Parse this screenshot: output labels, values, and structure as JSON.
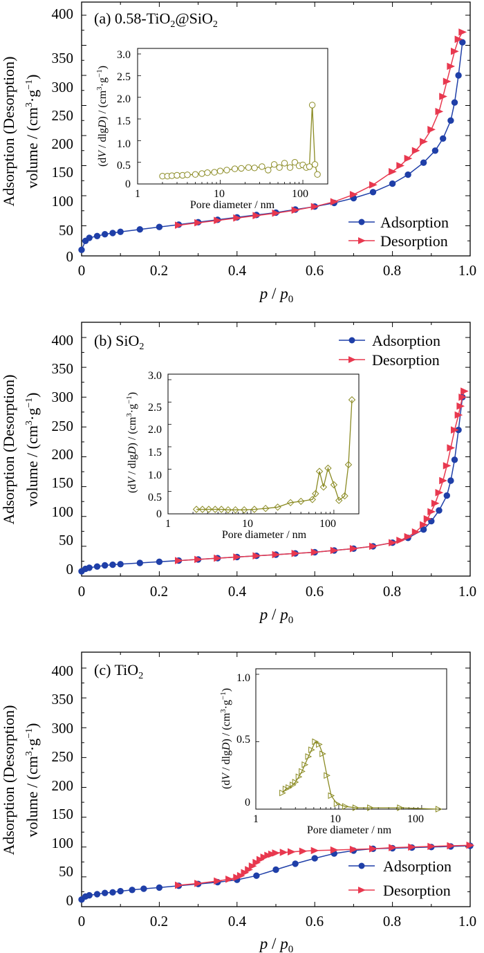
{
  "colors": {
    "adsorption": "#1f3fa8",
    "desorption": "#e8384f",
    "inset": "#8a8a22",
    "axis": "#000000"
  },
  "shared": {
    "xlabel_p": "p",
    "xlabel_sep": " / ",
    "xlabel_p0": "p",
    "xlabel_sub": "0",
    "ylabel_line1": "Adsorption (Desorption)",
    "ylabel_line2_a": "volume / (cm",
    "ylabel_line2_b": "3",
    "ylabel_line2_c": "·g",
    "ylabel_line2_d": "−1",
    "ylabel_line2_e": ")",
    "inset_xlabel": "Pore diameter / nm",
    "inset_ylabel_a": "(d",
    "inset_ylabel_b": "V",
    "inset_ylabel_c": " / dlg",
    "inset_ylabel_d": "D",
    "inset_ylabel_e": ") / (cm",
    "inset_ylabel_f": "3",
    "inset_ylabel_g": "·g",
    "inset_ylabel_h": "−1",
    "inset_ylabel_i": ")",
    "legend_adsorption": "Adsorption",
    "legend_desorption": "Desorption"
  },
  "chart_data": [
    {
      "type": "line",
      "panel_label_a": "(a) 0.58-TiO",
      "panel_label_b": "2",
      "panel_label_c": "@SiO",
      "panel_label_d": "2",
      "xlim": [
        0,
        1.0
      ],
      "ylim": [
        0,
        400
      ],
      "xticks": [
        "0",
        "0.2",
        "0.4",
        "0.6",
        "0.8",
        "1.0"
      ],
      "yticks": [
        "0",
        "50",
        "100",
        "150",
        "200",
        "250",
        "300",
        "350",
        "400"
      ],
      "legend_position": "bottom-right",
      "series": [
        {
          "name": "Adsorption",
          "marker": "circle",
          "x": [
            0.0,
            0.01,
            0.02,
            0.04,
            0.06,
            0.08,
            0.1,
            0.15,
            0.2,
            0.25,
            0.3,
            0.35,
            0.4,
            0.45,
            0.5,
            0.55,
            0.6,
            0.65,
            0.7,
            0.75,
            0.8,
            0.84,
            0.88,
            0.91,
            0.93,
            0.95,
            0.96,
            0.97,
            0.98
          ],
          "y": [
            10,
            25,
            30,
            33,
            36,
            38,
            40,
            44,
            48,
            52,
            56,
            60,
            64,
            68,
            72,
            77,
            82,
            88,
            96,
            106,
            120,
            135,
            155,
            175,
            195,
            225,
            255,
            300,
            355
          ]
        },
        {
          "name": "Desorption",
          "marker": "triangle",
          "x": [
            0.98,
            0.97,
            0.96,
            0.95,
            0.94,
            0.93,
            0.92,
            0.9,
            0.88,
            0.86,
            0.84,
            0.82,
            0.8,
            0.75,
            0.7,
            0.65,
            0.6,
            0.55,
            0.5,
            0.45,
            0.4,
            0.35,
            0.3,
            0.25
          ],
          "y": [
            372,
            360,
            340,
            315,
            290,
            265,
            240,
            210,
            190,
            175,
            162,
            150,
            140,
            118,
            102,
            90,
            82,
            76,
            71,
            67,
            63,
            59,
            55,
            51
          ]
        }
      ],
      "inset": {
        "xscale": "log",
        "xlim": [
          1,
          200
        ],
        "ylim": [
          0,
          3.0
        ],
        "xticks": [
          "1",
          "10",
          "100"
        ],
        "yticks": [
          "0",
          "0.5",
          "1.0",
          "1.5",
          "2.0",
          "2.5",
          "3.0"
        ],
        "marker": "circle",
        "x": [
          2,
          2.3,
          2.6,
          3,
          3.5,
          4,
          5,
          6,
          7,
          8.5,
          10,
          12,
          15,
          18,
          22,
          26,
          32,
          38,
          45,
          52,
          60,
          70,
          80,
          90,
          100,
          110,
          120,
          130,
          140,
          150
        ],
        "y": [
          0.18,
          0.18,
          0.19,
          0.2,
          0.2,
          0.21,
          0.22,
          0.24,
          0.26,
          0.27,
          0.3,
          0.32,
          0.35,
          0.36,
          0.38,
          0.37,
          0.4,
          0.32,
          0.45,
          0.38,
          0.48,
          0.38,
          0.5,
          0.42,
          0.44,
          0.38,
          0.4,
          1.82,
          0.45,
          0.22
        ]
      }
    },
    {
      "type": "line",
      "panel_label_a": "(b) SiO",
      "panel_label_b": "2",
      "panel_label_c": "",
      "panel_label_d": "",
      "xlim": [
        0,
        1.0
      ],
      "ylim": [
        0,
        400
      ],
      "xticks": [
        "0",
        "0.2",
        "0.4",
        "0.6",
        "0.8",
        "1.0"
      ],
      "yticks": [
        "0",
        "50",
        "100",
        "150",
        "200",
        "250",
        "300",
        "350",
        "400"
      ],
      "legend_position": "top-right",
      "series": [
        {
          "name": "Adsorption",
          "marker": "circle",
          "x": [
            0.0,
            0.01,
            0.02,
            0.04,
            0.06,
            0.08,
            0.1,
            0.15,
            0.2,
            0.25,
            0.3,
            0.35,
            0.4,
            0.45,
            0.5,
            0.55,
            0.6,
            0.65,
            0.7,
            0.75,
            0.8,
            0.84,
            0.88,
            0.9,
            0.92,
            0.94,
            0.95,
            0.96,
            0.97,
            0.98
          ],
          "y": [
            8,
            12,
            14,
            16,
            18,
            19,
            20,
            22,
            24,
            26,
            28,
            30,
            32,
            34,
            36,
            38,
            40,
            43,
            46,
            50,
            56,
            64,
            78,
            92,
            110,
            135,
            160,
            195,
            245,
            300
          ]
        },
        {
          "name": "Desorption",
          "marker": "triangle",
          "x": [
            0.985,
            0.98,
            0.975,
            0.97,
            0.96,
            0.95,
            0.94,
            0.93,
            0.92,
            0.91,
            0.9,
            0.89,
            0.88,
            0.86,
            0.84,
            0.82,
            0.8,
            0.75,
            0.7,
            0.65,
            0.6,
            0.55,
            0.5,
            0.45,
            0.4,
            0.35,
            0.3,
            0.25
          ],
          "y": [
            310,
            300,
            285,
            270,
            245,
            215,
            185,
            160,
            140,
            122,
            108,
            96,
            86,
            74,
            66,
            60,
            56,
            50,
            46,
            43,
            40,
            38,
            36,
            34,
            32,
            30,
            28,
            26
          ]
        }
      ],
      "inset": {
        "xscale": "log",
        "xlim": [
          1,
          200
        ],
        "ylim": [
          0,
          3.0
        ],
        "xticks": [
          "1",
          "10",
          "100"
        ],
        "yticks": [
          "0",
          "0.5",
          "1.0",
          "1.5",
          "2.0",
          "2.5",
          "3.0"
        ],
        "marker": "diamond",
        "x": [
          2.2,
          2.6,
          3.1,
          3.7,
          4.4,
          5.3,
          6.5,
          8.3,
          11,
          15,
          21,
          30,
          40,
          55,
          60,
          67,
          75,
          85,
          100,
          115,
          135,
          150,
          165
        ],
        "y": [
          0.1,
          0.1,
          0.1,
          0.1,
          0.1,
          0.09,
          0.09,
          0.09,
          0.1,
          0.12,
          0.15,
          0.25,
          0.28,
          0.32,
          0.45,
          0.95,
          0.6,
          1.02,
          0.65,
          0.3,
          0.4,
          1.1,
          2.55
        ]
      }
    },
    {
      "type": "line",
      "panel_label_a": "(c) TiO",
      "panel_label_b": "2",
      "panel_label_c": "",
      "panel_label_d": "",
      "xlim": [
        0,
        1.0
      ],
      "ylim": [
        0,
        400
      ],
      "xticks": [
        "0",
        "0.2",
        "0.4",
        "0.6",
        "0.8",
        "1.0"
      ],
      "yticks": [
        "0",
        "50",
        "100",
        "150",
        "200",
        "250",
        "300",
        "350",
        "400"
      ],
      "legend_position": "bottom-right",
      "series": [
        {
          "name": "Adsorption",
          "marker": "circle",
          "x": [
            0.0,
            0.01,
            0.02,
            0.04,
            0.06,
            0.08,
            0.1,
            0.13,
            0.16,
            0.2,
            0.25,
            0.3,
            0.35,
            0.4,
            0.45,
            0.5,
            0.55,
            0.6,
            0.65,
            0.7,
            0.75,
            0.8,
            0.85,
            0.9,
            0.95,
            1.0
          ],
          "y": [
            12,
            17,
            19,
            21,
            23,
            24,
            26,
            28,
            30,
            32,
            35,
            38,
            41,
            45,
            52,
            62,
            72,
            81,
            89,
            94,
            97,
            98,
            99,
            100,
            101,
            102
          ]
        },
        {
          "name": "Desorption",
          "marker": "triangle",
          "x": [
            1.0,
            0.95,
            0.9,
            0.85,
            0.8,
            0.75,
            0.7,
            0.65,
            0.6,
            0.57,
            0.54,
            0.52,
            0.5,
            0.49,
            0.48,
            0.47,
            0.46,
            0.45,
            0.44,
            0.43,
            0.42,
            0.41,
            0.4,
            0.38,
            0.35,
            0.3,
            0.25
          ],
          "y": [
            103,
            102,
            101,
            100,
            99,
            97,
            96,
            95,
            94,
            93,
            92,
            91,
            90,
            88,
            86,
            83,
            79,
            74,
            68,
            62,
            57,
            52,
            49,
            46,
            43,
            39,
            36
          ]
        }
      ],
      "inset": {
        "xscale": "log",
        "xlim": [
          1,
          200
        ],
        "ylim": [
          0,
          1.0
        ],
        "xticks": [
          "1",
          "10",
          "100"
        ],
        "yticks": [
          "0",
          "0.5",
          "1.0"
        ],
        "marker": "triangle-right",
        "x": [
          2.1,
          2.3,
          2.5,
          2.8,
          3.0,
          3.3,
          3.6,
          3.9,
          4.3,
          4.7,
          5.2,
          5.8,
          6.4,
          7.2,
          8.1,
          9.5,
          12,
          16,
          24,
          55,
          160
        ],
        "y": [
          0.12,
          0.15,
          0.16,
          0.18,
          0.2,
          0.24,
          0.28,
          0.33,
          0.39,
          0.44,
          0.5,
          0.48,
          0.41,
          0.25,
          0.1,
          0.04,
          0.02,
          0.01,
          0.01,
          0.01,
          0.0
        ]
      }
    }
  ]
}
